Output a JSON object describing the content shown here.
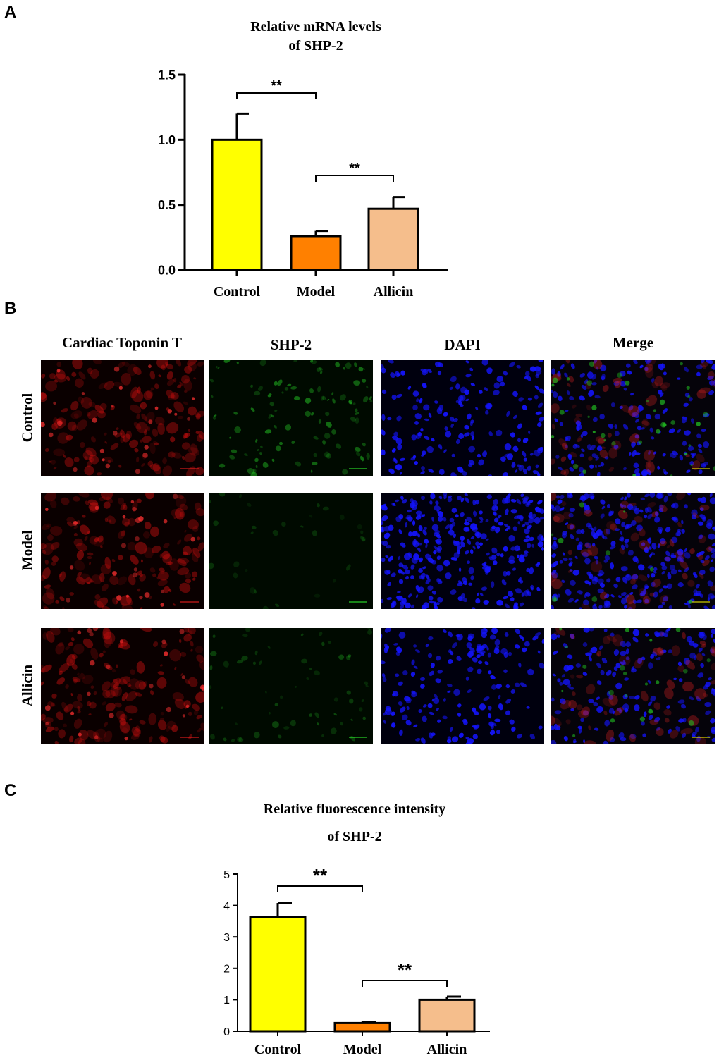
{
  "panels": {
    "a": "A",
    "b": "B",
    "c": "C"
  },
  "microscopy": {
    "columns": [
      "Cardiac Toponin T",
      "SHP-2",
      "DAPI",
      "Merge"
    ],
    "rows": [
      "Control",
      "Model",
      "Allicin"
    ],
    "colors": {
      "red": "#e01010",
      "green": "#22c022",
      "blue": "#1414ff",
      "merge_red": "#cc2020"
    }
  },
  "chart_data": [
    {
      "type": "bar",
      "title": "Relative mRNA levels\nof SHP-2",
      "categories": [
        "Control",
        "Model",
        "Allicin"
      ],
      "values": [
        1.0,
        0.26,
        0.47
      ],
      "errors": [
        0.2,
        0.04,
        0.09
      ],
      "colors": [
        "#ffff00",
        "#ff8000",
        "#f5be8c"
      ],
      "ylim": [
        0,
        1.5
      ],
      "yticks": [
        "0.0",
        "0.5",
        "1.0",
        "1.5"
      ],
      "significance": [
        {
          "from": "Control",
          "to": "Model",
          "label": "**"
        },
        {
          "from": "Model",
          "to": "Allicin",
          "label": "**"
        }
      ]
    },
    {
      "type": "bar",
      "title": "Relative fluorescence intensity\nof SHP-2",
      "categories": [
        "Control",
        "Model",
        "Allicin"
      ],
      "values": [
        3.63,
        0.26,
        1.0
      ],
      "errors": [
        0.45,
        0.04,
        0.1
      ],
      "colors": [
        "#ffff00",
        "#ff8000",
        "#f5be8c"
      ],
      "ylim": [
        0,
        5
      ],
      "yticks": [
        "0",
        "1",
        "2",
        "3",
        "4",
        "5"
      ],
      "significance": [
        {
          "from": "Control",
          "to": "Model",
          "label": "**"
        },
        {
          "from": "Model",
          "to": "Allicin",
          "label": "**"
        }
      ]
    }
  ]
}
